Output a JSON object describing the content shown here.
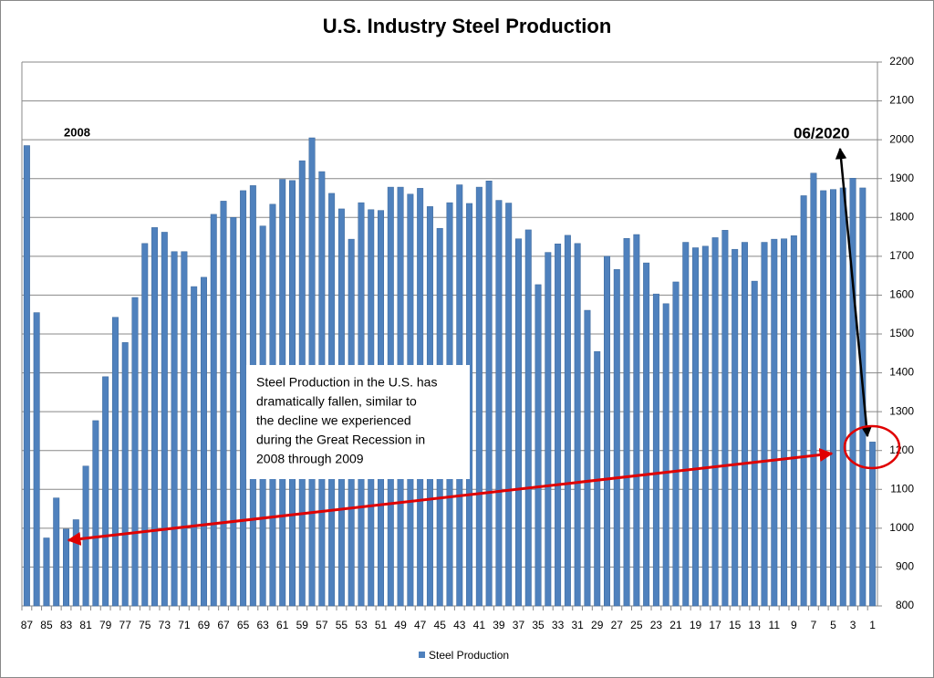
{
  "chart_data": {
    "type": "bar",
    "title": "U.S. Industry Steel Production",
    "categories": [
      87,
      null,
      85,
      null,
      83,
      null,
      81,
      null,
      79,
      null,
      77,
      null,
      75,
      null,
      73,
      null,
      71,
      null,
      69,
      null,
      67,
      null,
      65,
      null,
      63,
      null,
      61,
      null,
      59,
      null,
      57,
      null,
      55,
      null,
      53,
      null,
      51,
      null,
      49,
      null,
      47,
      null,
      45,
      null,
      43,
      null,
      41,
      null,
      39,
      null,
      37,
      null,
      35,
      null,
      33,
      null,
      31,
      null,
      29,
      null,
      27,
      null,
      25,
      null,
      23,
      null,
      21,
      null,
      19,
      null,
      17,
      null,
      15,
      null,
      13,
      null,
      11,
      null,
      9,
      null,
      7,
      null,
      5,
      null,
      3,
      null,
      1
    ],
    "series": [
      {
        "name": "Steel Production",
        "color": "#4f81bd",
        "values": [
          1985,
          1555,
          975,
          1078,
          998,
          1022,
          1160,
          1277,
          1390,
          1543,
          1478,
          1594,
          1733,
          1774,
          1762,
          1712,
          1712,
          1622,
          1646,
          1808,
          1842,
          1800,
          1869,
          1882,
          1778,
          1834,
          1898,
          1895,
          1946,
          2005,
          1918,
          1862,
          1822,
          1744,
          1838,
          1820,
          1818,
          1878,
          1878,
          1860,
          1875,
          1828,
          1772,
          1838,
          1884,
          1836,
          1878,
          1894,
          1844,
          1837,
          1745,
          1768,
          1627,
          1710,
          1732,
          1754,
          1733,
          1561,
          1455,
          1700,
          1666,
          1746,
          1756,
          1683,
          1603,
          1578,
          1634,
          1736,
          1722,
          1726,
          1748,
          1767,
          1718,
          1736,
          1636,
          1736,
          1744,
          1745,
          1753,
          1856,
          1914,
          1869,
          1872,
          1876,
          1901,
          1876,
          1222
        ]
      }
    ],
    "ylim": [
      800,
      2200
    ],
    "yticks": [
      800,
      900,
      1000,
      1100,
      1200,
      1300,
      1400,
      1500,
      1600,
      1700,
      1800,
      1900,
      2000,
      2100,
      2200
    ],
    "y_axis_side": "right",
    "grid": true,
    "legend": "bottom",
    "annotations": {
      "start_label": "2008",
      "end_label": "06/2020",
      "note": [
        "Steel Production in the U.S. has",
        "dramatically fallen, similar to",
        "the decline we experienced",
        "during the Great Recession in",
        "2008 through 2009"
      ]
    }
  }
}
